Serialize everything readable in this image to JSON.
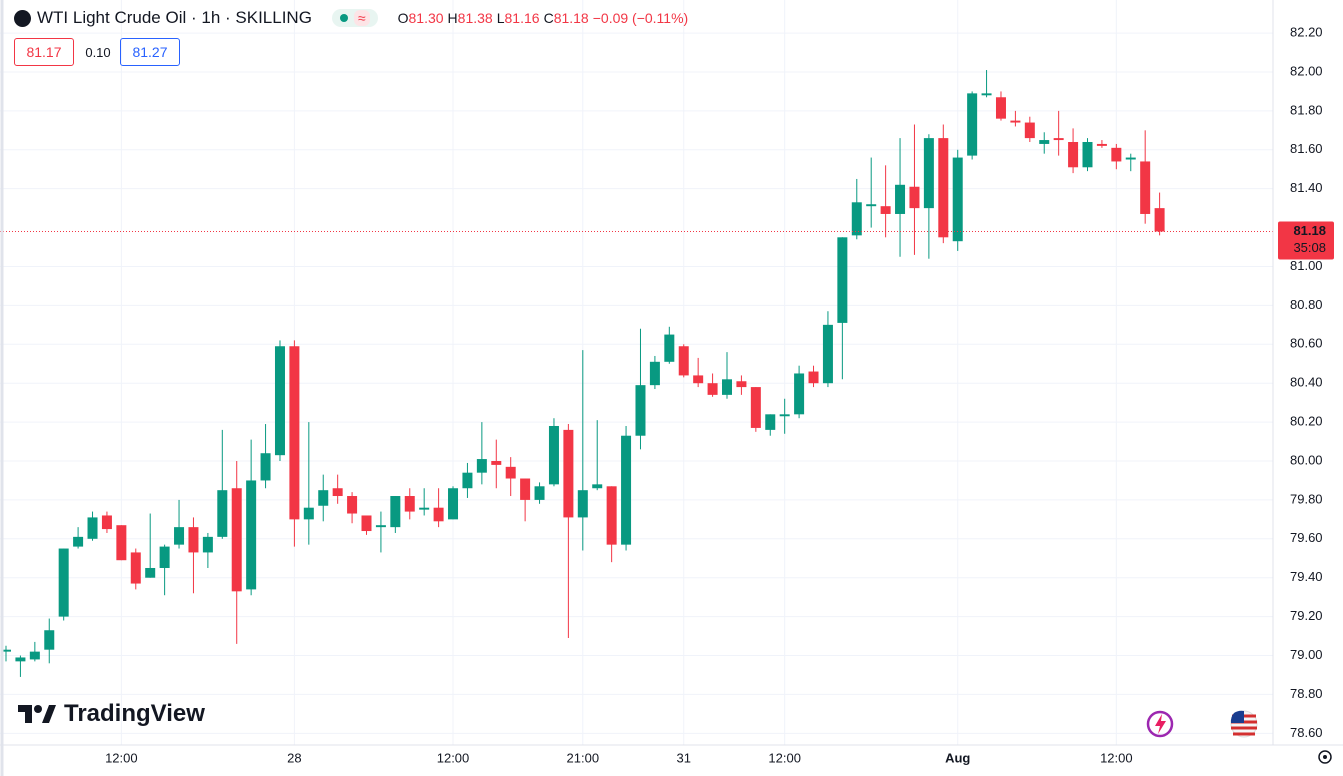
{
  "chart_data": {
    "type": "candlestick",
    "title": "WTI Light Crude Oil · 1h · SKILLING",
    "ohlc_legend": [
      {
        "key": "O",
        "text": "81.30"
      },
      {
        "key": "H",
        "text": "81.38"
      },
      {
        "key": "L",
        "text": "81.16"
      },
      {
        "key": "C",
        "text": "81.18"
      }
    ],
    "change_text": "−0.09 (−0.11%)",
    "bid": "81.17",
    "spread": "0.10",
    "ask": "81.27",
    "last_price": {
      "value": 81.18,
      "label": "81.18"
    },
    "countdown": "35:08",
    "watermark": "TradingView",
    "up_color": "#089981",
    "down_color": "#f23645",
    "grid": true,
    "categories": [
      null,
      null,
      null,
      null,
      null,
      null,
      null,
      null,
      "12:00",
      null,
      null,
      null,
      null,
      null,
      null,
      null,
      null,
      null,
      null,
      null,
      "28",
      null,
      null,
      null,
      null,
      null,
      null,
      null,
      null,
      null,
      null,
      "12:00",
      null,
      null,
      null,
      null,
      null,
      null,
      null,
      null,
      "21:00",
      null,
      null,
      null,
      null,
      null,
      null,
      "31",
      null,
      null,
      null,
      null,
      null,
      null,
      "12:00",
      null,
      null,
      null,
      null,
      null,
      null,
      null,
      null,
      null,
      null,
      null,
      "Aug",
      null,
      null,
      null,
      null,
      null,
      null,
      null,
      null,
      null,
      null,
      "12:00",
      null,
      null,
      null
    ],
    "open": [
      79.02,
      78.97,
      78.98,
      79.03,
      79.2,
      79.56,
      79.6,
      79.72,
      79.67,
      79.53,
      79.4,
      79.45,
      79.57,
      79.66,
      79.53,
      79.61,
      79.86,
      79.34,
      79.9,
      80.03,
      80.59,
      79.7,
      79.77,
      79.86,
      79.82,
      79.72,
      79.66,
      79.66,
      79.82,
      79.75,
      79.76,
      79.7,
      79.86,
      79.94,
      80.0,
      79.97,
      79.91,
      79.8,
      79.88,
      80.16,
      79.71,
      79.86,
      79.87,
      79.57,
      80.13,
      80.39,
      80.51,
      80.59,
      80.44,
      80.4,
      80.34,
      80.41,
      80.38,
      80.16,
      80.23,
      80.24,
      80.46,
      80.4,
      80.71,
      81.16,
      81.31,
      81.31,
      81.27,
      81.41,
      81.3,
      81.66,
      81.13,
      81.57,
      81.88,
      81.87,
      81.75,
      81.74,
      81.63,
      81.66,
      81.64,
      81.51,
      81.63,
      81.61,
      81.55,
      81.54,
      81.3
    ],
    "high": [
      79.05,
      79.0,
      79.07,
      79.19,
      79.55,
      79.66,
      79.74,
      79.74,
      79.67,
      79.55,
      79.73,
      79.57,
      79.8,
      79.71,
      79.63,
      80.16,
      80.0,
      80.11,
      80.19,
      80.62,
      80.62,
      80.2,
      79.93,
      79.93,
      79.84,
      79.72,
      79.74,
      79.82,
      79.86,
      79.86,
      79.86,
      79.87,
      79.99,
      80.2,
      80.11,
      80.02,
      79.91,
      79.89,
      80.22,
      80.19,
      80.57,
      80.21,
      79.87,
      80.18,
      80.68,
      80.54,
      80.69,
      80.6,
      80.53,
      80.45,
      80.56,
      80.44,
      80.38,
      80.24,
      80.32,
      80.49,
      80.49,
      80.77,
      81.15,
      81.45,
      81.56,
      81.52,
      81.66,
      81.73,
      81.68,
      81.73,
      81.6,
      81.9,
      82.01,
      81.9,
      81.8,
      81.77,
      81.69,
      81.8,
      81.71,
      81.66,
      81.65,
      81.63,
      81.58,
      81.7,
      81.38
    ],
    "low": [
      78.97,
      78.89,
      78.97,
      78.96,
      79.18,
      79.55,
      79.59,
      79.63,
      79.49,
      79.34,
      79.4,
      79.31,
      79.55,
      79.32,
      79.45,
      79.6,
      79.06,
      79.31,
      79.86,
      80.0,
      79.56,
      79.57,
      79.69,
      79.78,
      79.68,
      79.62,
      79.53,
      79.63,
      79.7,
      79.72,
      79.66,
      79.7,
      79.81,
      79.88,
      79.86,
      79.82,
      79.69,
      79.78,
      79.87,
      79.09,
      79.54,
      79.85,
      79.48,
      79.54,
      80.06,
      80.37,
      80.5,
      80.43,
      80.38,
      80.33,
      80.32,
      80.34,
      80.15,
      80.13,
      80.14,
      80.22,
      80.38,
      80.38,
      80.42,
      81.14,
      81.2,
      81.15,
      81.05,
      81.06,
      81.04,
      81.12,
      81.08,
      81.55,
      81.87,
      81.75,
      81.72,
      81.64,
      81.58,
      81.57,
      81.48,
      81.49,
      81.61,
      81.5,
      81.49,
      81.22,
      81.16
    ],
    "close": [
      79.03,
      78.99,
      79.02,
      79.13,
      79.55,
      79.61,
      79.71,
      79.65,
      79.49,
      79.37,
      79.45,
      79.56,
      79.66,
      79.53,
      79.61,
      79.85,
      79.33,
      79.9,
      80.04,
      80.59,
      79.7,
      79.76,
      79.85,
      79.82,
      79.73,
      79.64,
      79.67,
      79.82,
      79.74,
      79.76,
      79.69,
      79.86,
      79.94,
      80.01,
      79.98,
      79.91,
      79.8,
      79.87,
      80.18,
      79.71,
      79.85,
      79.88,
      79.57,
      80.13,
      80.39,
      80.51,
      80.65,
      80.44,
      80.4,
      80.34,
      80.42,
      80.38,
      80.17,
      80.24,
      80.24,
      80.45,
      80.4,
      80.7,
      81.15,
      81.33,
      81.32,
      81.27,
      81.42,
      81.3,
      81.66,
      81.15,
      81.56,
      81.89,
      81.89,
      81.76,
      81.74,
      81.66,
      81.65,
      81.65,
      81.51,
      81.64,
      81.62,
      81.54,
      81.56,
      81.27,
      81.18
    ],
    "ylim": [
      78.54,
      82.37
    ],
    "yticks": [
      {
        "value": 78.6,
        "label": "78.60"
      },
      {
        "value": 78.8,
        "label": "78.80"
      },
      {
        "value": 79,
        "label": "79.00"
      },
      {
        "value": 79.2,
        "label": "79.20"
      },
      {
        "value": 79.4,
        "label": "79.40"
      },
      {
        "value": 79.6,
        "label": "79.60"
      },
      {
        "value": 79.8,
        "label": "79.80"
      },
      {
        "value": 80,
        "label": "80.00"
      },
      {
        "value": 80.2,
        "label": "80.20"
      },
      {
        "value": 80.4,
        "label": "80.40"
      },
      {
        "value": 80.6,
        "label": "80.60"
      },
      {
        "value": 80.8,
        "label": "80.80"
      },
      {
        "value": 81,
        "label": "81.00"
      },
      {
        "value": 81.4,
        "label": "81.40"
      },
      {
        "value": 81.6,
        "label": "81.60"
      },
      {
        "value": 81.8,
        "label": "81.80"
      },
      {
        "value": 82,
        "label": "82.00"
      },
      {
        "value": 82.2,
        "label": "82.20"
      }
    ]
  }
}
